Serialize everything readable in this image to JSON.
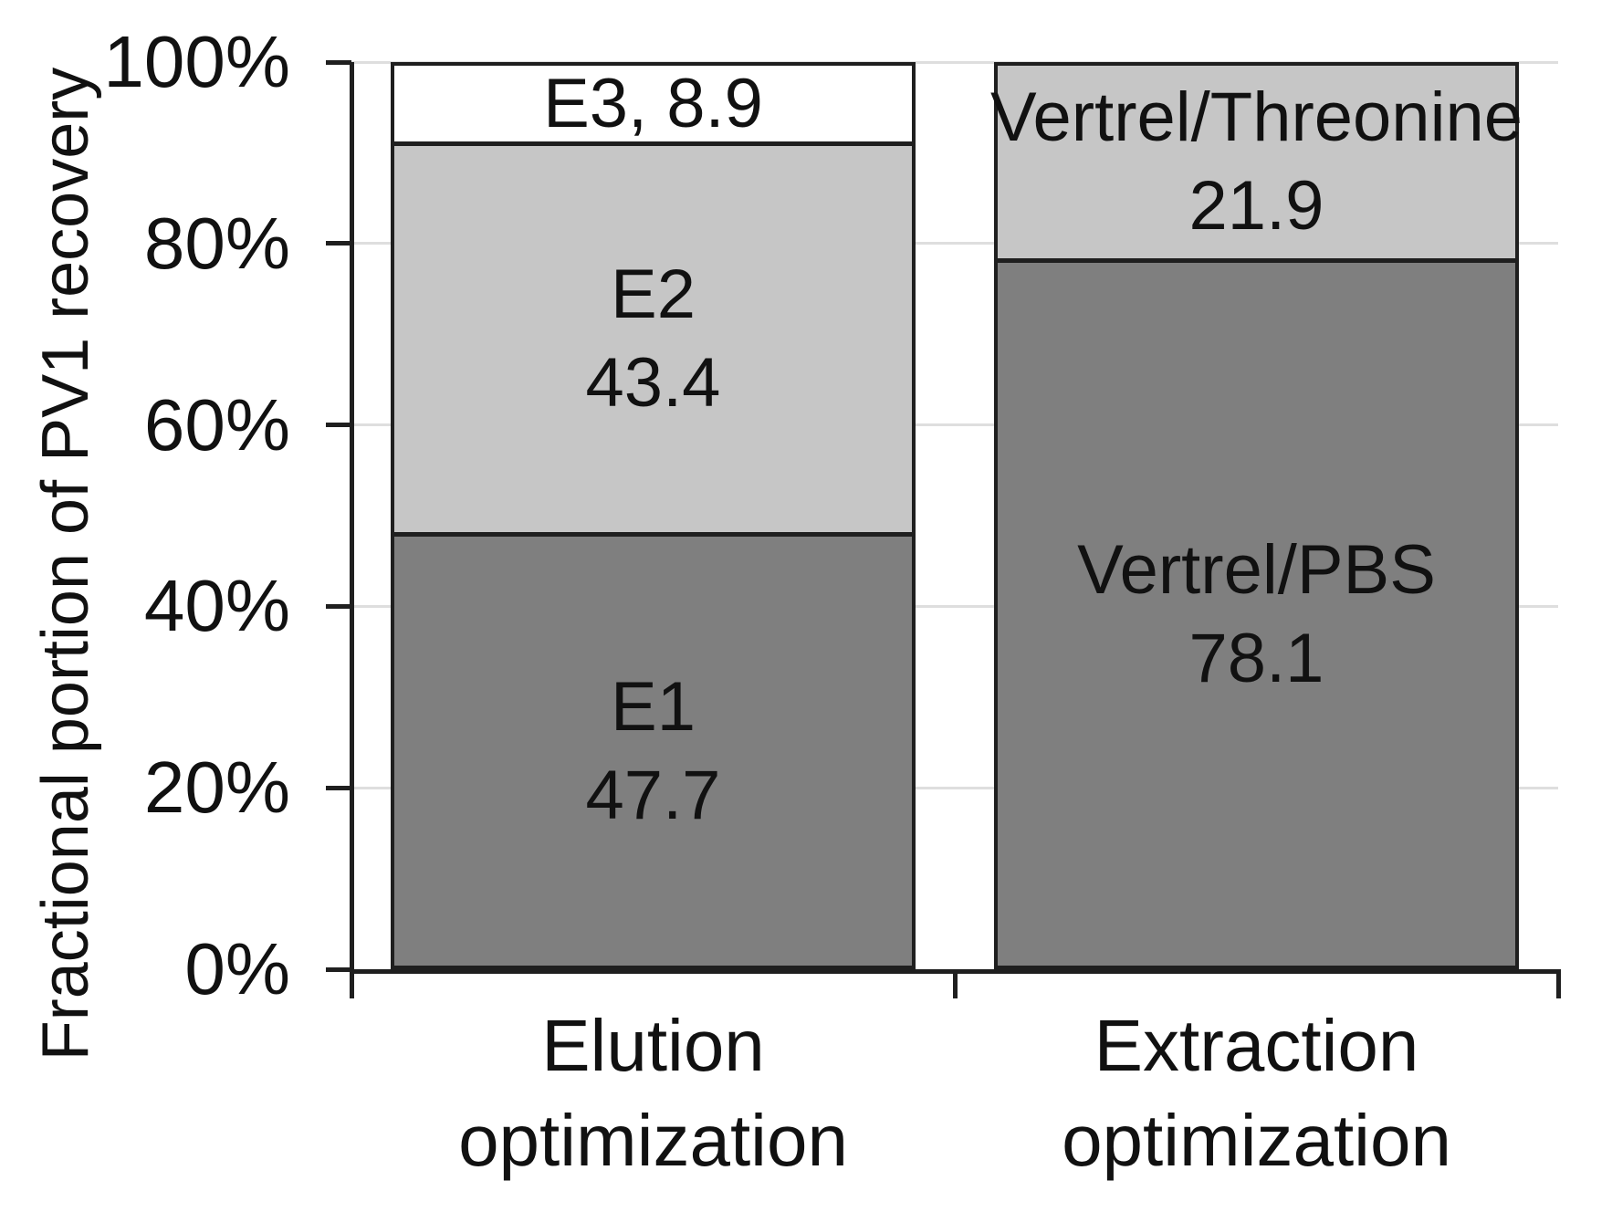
{
  "chart_data": {
    "type": "bar",
    "subtype": "stacked-100-percent",
    "title": "",
    "xlabel": "",
    "ylabel": "Fractional portion of PV1 recovery",
    "ylim": [
      0,
      100
    ],
    "grid": "horizontal",
    "legend": "none",
    "colors": {
      "dark_gray_fill": "#7f7f7f",
      "light_gray_fill": "#c6c6c6",
      "white_fill": "#ffffff",
      "border": "#1f1f1f",
      "gridline": "#dedede",
      "text": "#111111"
    },
    "yticks": [
      {
        "value": 0,
        "label": "0%"
      },
      {
        "value": 20,
        "label": "20%"
      },
      {
        "value": 40,
        "label": "40%"
      },
      {
        "value": 60,
        "label": "60%"
      },
      {
        "value": 80,
        "label": "80%"
      },
      {
        "value": 100,
        "label": "100%"
      }
    ],
    "categories": [
      "Elution\noptimization",
      "Extraction\noptimization"
    ],
    "stacks": [
      {
        "category": "Elution\noptimization",
        "segments": [
          {
            "name": "E1",
            "value": 47.7,
            "fill": "#7f7f7f",
            "label": "E1\n47.7"
          },
          {
            "name": "E2",
            "value": 43.4,
            "fill": "#c6c6c6",
            "label": "E2\n43.4"
          },
          {
            "name": "E3",
            "value": 8.9,
            "fill": "#ffffff",
            "label": "E3, 8.9"
          }
        ]
      },
      {
        "category": "Extraction\noptimization",
        "segments": [
          {
            "name": "Vertrel/PBS",
            "value": 78.1,
            "fill": "#7f7f7f",
            "label": "Vertrel/PBS\n78.1"
          },
          {
            "name": "Vertrel/Threonine",
            "value": 21.9,
            "fill": "#c6c6c6",
            "label": "Vertrel/Threonine\n21.9"
          }
        ]
      }
    ]
  }
}
